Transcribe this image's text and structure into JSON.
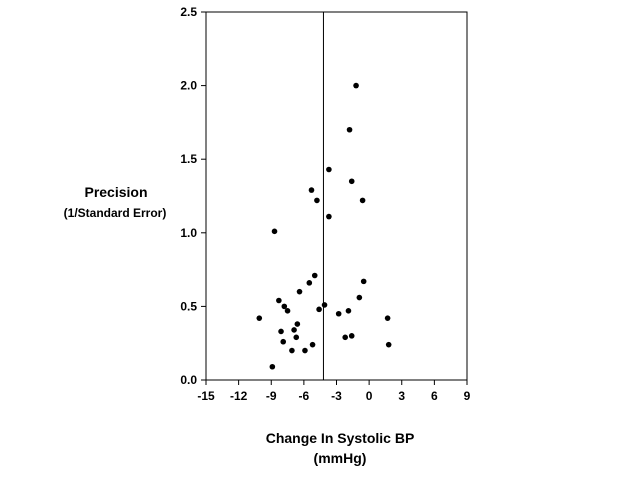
{
  "chart_data": {
    "type": "scatter",
    "xlabel": "Change In Systolic BP",
    "xlabel_unit": "(mmHg)",
    "ylabel": "Precision",
    "ylabel_sub": "(1/Standard Error)",
    "xlim": [
      -15,
      9
    ],
    "ylim": [
      0.0,
      2.5
    ],
    "xticks": [
      -15,
      -12,
      -9,
      -6,
      -3,
      0,
      3,
      6,
      9
    ],
    "yticks": [
      "0.0",
      "0.5",
      "1.0",
      "1.5",
      "2.0",
      "2.5"
    ],
    "reference_line_x": -4.2,
    "grid": false,
    "points": [
      {
        "x": -10.1,
        "y": 0.42
      },
      {
        "x": -8.9,
        "y": 0.09
      },
      {
        "x": -8.7,
        "y": 1.01
      },
      {
        "x": -8.3,
        "y": 0.54
      },
      {
        "x": -8.1,
        "y": 0.33
      },
      {
        "x": -7.9,
        "y": 0.26
      },
      {
        "x": -7.8,
        "y": 0.5
      },
      {
        "x": -7.5,
        "y": 0.47
      },
      {
        "x": -7.1,
        "y": 0.2
      },
      {
        "x": -6.9,
        "y": 0.34
      },
      {
        "x": -6.7,
        "y": 0.29
      },
      {
        "x": -6.6,
        "y": 0.38
      },
      {
        "x": -6.4,
        "y": 0.6
      },
      {
        "x": -5.9,
        "y": 0.2
      },
      {
        "x": -5.5,
        "y": 0.66
      },
      {
        "x": -5.3,
        "y": 1.29
      },
      {
        "x": -5.2,
        "y": 0.24
      },
      {
        "x": -5.0,
        "y": 0.71
      },
      {
        "x": -4.8,
        "y": 1.22
      },
      {
        "x": -4.6,
        "y": 0.48
      },
      {
        "x": -4.1,
        "y": 0.51
      },
      {
        "x": -3.7,
        "y": 1.43
      },
      {
        "x": -3.7,
        "y": 1.11
      },
      {
        "x": -2.8,
        "y": 0.45
      },
      {
        "x": -2.2,
        "y": 0.29
      },
      {
        "x": -1.9,
        "y": 0.47
      },
      {
        "x": -1.8,
        "y": 1.7
      },
      {
        "x": -1.6,
        "y": 1.35
      },
      {
        "x": -1.6,
        "y": 0.3
      },
      {
        "x": -1.2,
        "y": 2.0
      },
      {
        "x": -0.9,
        "y": 0.56
      },
      {
        "x": -0.6,
        "y": 1.22
      },
      {
        "x": -0.5,
        "y": 0.67
      },
      {
        "x": 1.7,
        "y": 0.42
      },
      {
        "x": 1.8,
        "y": 0.24
      }
    ]
  }
}
